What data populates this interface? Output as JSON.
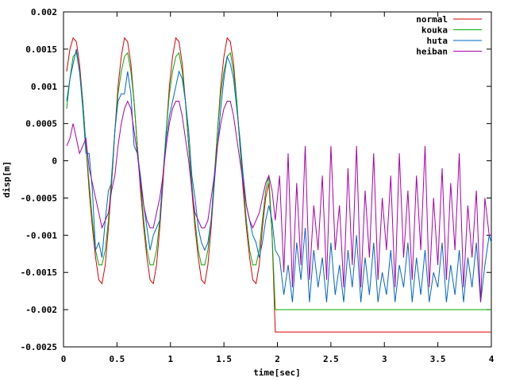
{
  "chart_data": {
    "type": "line",
    "xlabel": "time[sec]",
    "ylabel": "disp[m]",
    "xlim": [
      0,
      4
    ],
    "ylim": [
      -0.0025,
      0.002
    ],
    "x_ticks": [
      0,
      0.5,
      1,
      1.5,
      2,
      2.5,
      3,
      3.5,
      4
    ],
    "x_tick_labels": [
      "0",
      "0.5",
      "1",
      "1.5",
      "2",
      "2.5",
      "3",
      "3.5",
      "4"
    ],
    "y_ticks": [
      0.002,
      0.0015,
      0.001,
      0.0005,
      0,
      -0.0005,
      -0.001,
      -0.0015,
      -0.002,
      -0.0025
    ],
    "y_tick_labels": [
      "0.002",
      "0.0015",
      "0.001",
      "0.0005",
      "0",
      "-0.0005",
      "-0.001",
      "-0.0015",
      "-0.002",
      "-0.0025"
    ],
    "grid": false,
    "legend_position": "top-right",
    "series": [
      {
        "name": "normal",
        "color": "#dd0000",
        "x": [
          0.03,
          0.06,
          0.09,
          0.12,
          0.15,
          0.18,
          0.21,
          0.24,
          0.27,
          0.3,
          0.33,
          0.36,
          0.39,
          0.42,
          0.45,
          0.48,
          0.51,
          0.54,
          0.57,
          0.6,
          0.63,
          0.66,
          0.69,
          0.72,
          0.75,
          0.78,
          0.81,
          0.84,
          0.87,
          0.9,
          0.93,
          0.96,
          0.99,
          1.02,
          1.05,
          1.08,
          1.11,
          1.14,
          1.17,
          1.2,
          1.23,
          1.26,
          1.29,
          1.32,
          1.35,
          1.38,
          1.41,
          1.44,
          1.47,
          1.5,
          1.53,
          1.56,
          1.59,
          1.62,
          1.65,
          1.68,
          1.71,
          1.74,
          1.77,
          1.8,
          1.83,
          1.86,
          1.89,
          1.92,
          1.95,
          1.98,
          1.99,
          2.0,
          2.5,
          3.0,
          3.5,
          4.0
        ],
        "y": [
          0.0012,
          0.0015,
          0.00165,
          0.0016,
          0.0013,
          0.0008,
          0.0002,
          -0.0004,
          -0.0009,
          -0.0013,
          -0.0016,
          -0.00165,
          -0.0014,
          -0.0009,
          -0.0003,
          0.0004,
          0.001,
          0.0014,
          0.00165,
          0.0016,
          0.0013,
          0.0008,
          0.0002,
          -0.0004,
          -0.0009,
          -0.0013,
          -0.0016,
          -0.00165,
          -0.0014,
          -0.0009,
          -0.0003,
          0.0004,
          0.001,
          0.0014,
          0.00165,
          0.0016,
          0.0013,
          0.0008,
          0.0002,
          -0.0004,
          -0.0009,
          -0.0013,
          -0.0016,
          -0.00165,
          -0.0014,
          -0.0009,
          -0.0003,
          0.0004,
          0.001,
          0.0014,
          0.00165,
          0.0016,
          0.0013,
          0.0008,
          0.0002,
          -0.0004,
          -0.0009,
          -0.0013,
          -0.0016,
          -0.00165,
          -0.0014,
          -0.0009,
          -0.0005,
          -0.0003,
          -0.001,
          -0.0023,
          -0.0023,
          -0.0023,
          -0.0023,
          -0.0023,
          -0.0023,
          -0.0023
        ]
      },
      {
        "name": "kouka",
        "color": "#00aa00",
        "x": [
          0.03,
          0.06,
          0.09,
          0.12,
          0.15,
          0.18,
          0.21,
          0.24,
          0.27,
          0.3,
          0.33,
          0.36,
          0.39,
          0.42,
          0.45,
          0.48,
          0.51,
          0.54,
          0.57,
          0.6,
          0.63,
          0.66,
          0.69,
          0.72,
          0.75,
          0.78,
          0.81,
          0.84,
          0.87,
          0.9,
          0.93,
          0.96,
          0.99,
          1.02,
          1.05,
          1.08,
          1.11,
          1.14,
          1.17,
          1.2,
          1.23,
          1.26,
          1.29,
          1.32,
          1.35,
          1.38,
          1.41,
          1.44,
          1.47,
          1.5,
          1.53,
          1.56,
          1.59,
          1.62,
          1.65,
          1.68,
          1.71,
          1.74,
          1.77,
          1.8,
          1.83,
          1.86,
          1.89,
          1.92,
          1.95,
          1.98,
          1.99,
          2.0,
          2.5,
          3.0,
          3.5,
          4.0
        ],
        "y": [
          0.0007,
          0.0011,
          0.0014,
          0.00145,
          0.0012,
          0.0008,
          0.0002,
          -0.0003,
          -0.0008,
          -0.0012,
          -0.0014,
          -0.0014,
          -0.0012,
          -0.0008,
          -0.0002,
          0.0004,
          0.0009,
          0.0012,
          0.0014,
          0.00145,
          0.0012,
          0.0008,
          0.0002,
          -0.0003,
          -0.0008,
          -0.0012,
          -0.0014,
          -0.0014,
          -0.0012,
          -0.0008,
          -0.0002,
          0.0004,
          0.0009,
          0.0012,
          0.0014,
          0.00145,
          0.0012,
          0.0008,
          0.0002,
          -0.0003,
          -0.0008,
          -0.0012,
          -0.0014,
          -0.0014,
          -0.0012,
          -0.0008,
          -0.0002,
          0.0004,
          0.0009,
          0.0012,
          0.0014,
          0.00145,
          0.0012,
          0.0008,
          0.0002,
          -0.0003,
          -0.0008,
          -0.0012,
          -0.0014,
          -0.0014,
          -0.0012,
          -0.0008,
          -0.0004,
          -0.0002,
          -0.001,
          -0.002,
          -0.002,
          -0.002,
          -0.002,
          -0.002,
          -0.002,
          -0.002
        ]
      },
      {
        "name": "huta",
        "color": "#0066cc",
        "x": [
          0.03,
          0.06,
          0.09,
          0.12,
          0.15,
          0.18,
          0.21,
          0.24,
          0.27,
          0.3,
          0.33,
          0.36,
          0.39,
          0.42,
          0.45,
          0.48,
          0.51,
          0.54,
          0.57,
          0.6,
          0.63,
          0.66,
          0.69,
          0.72,
          0.75,
          0.78,
          0.81,
          0.84,
          0.87,
          0.9,
          0.93,
          0.96,
          0.99,
          1.02,
          1.05,
          1.08,
          1.11,
          1.14,
          1.17,
          1.2,
          1.23,
          1.26,
          1.29,
          1.32,
          1.35,
          1.38,
          1.41,
          1.44,
          1.47,
          1.5,
          1.53,
          1.56,
          1.59,
          1.62,
          1.65,
          1.68,
          1.71,
          1.74,
          1.77,
          1.8,
          1.83,
          1.86,
          1.89,
          1.92,
          1.95,
          1.98,
          2.02,
          2.06,
          2.1,
          2.14,
          2.18,
          2.22,
          2.26,
          2.3,
          2.34,
          2.38,
          2.42,
          2.46,
          2.5,
          2.54,
          2.58,
          2.62,
          2.66,
          2.7,
          2.74,
          2.78,
          2.82,
          2.86,
          2.9,
          2.94,
          2.98,
          3.02,
          3.06,
          3.1,
          3.14,
          3.18,
          3.22,
          3.26,
          3.3,
          3.34,
          3.38,
          3.42,
          3.46,
          3.5,
          3.54,
          3.58,
          3.62,
          3.66,
          3.7,
          3.74,
          3.78,
          3.82,
          3.86,
          3.9,
          3.94,
          3.98,
          4.0
        ],
        "y": [
          0.0008,
          0.0011,
          0.0013,
          0.0015,
          0.0012,
          0.0007,
          0.0001,
          0.0001,
          -0.0004,
          -0.0012,
          -0.0011,
          -0.0013,
          -0.0008,
          -0.0004,
          -0.0003,
          0.0004,
          0.0008,
          0.0009,
          0.0009,
          0.0012,
          0.0009,
          0.0002,
          0.0001,
          -0.0002,
          -0.0006,
          -0.0009,
          -0.0012,
          -0.001,
          -0.0009,
          -0.0008,
          -0.0002,
          0.0003,
          0.0006,
          0.0008,
          0.001,
          0.0012,
          0.0011,
          0.0008,
          0.0004,
          -0.0002,
          -0.0005,
          -0.0009,
          -0.0011,
          -0.0012,
          -0.0011,
          -0.0008,
          -0.0003,
          0.0002,
          0.0007,
          0.0011,
          0.0014,
          0.0013,
          0.0011,
          0.0007,
          0.0003,
          -0.0002,
          -0.0006,
          -0.0008,
          -0.001,
          -0.0011,
          -0.0013,
          -0.0011,
          -0.0008,
          -0.0006,
          -0.0008,
          -0.0012,
          -0.0013,
          -0.0018,
          -0.0014,
          -0.0019,
          -0.0011,
          -0.0016,
          -0.0009,
          -0.0019,
          -0.0012,
          -0.0017,
          -0.0013,
          -0.0019,
          -0.0011,
          -0.0018,
          -0.0014,
          -0.0019,
          -0.0012,
          -0.0017,
          -0.001,
          -0.0019,
          -0.0013,
          -0.0018,
          -0.0011,
          -0.0019,
          -0.0015,
          -0.0018,
          -0.0012,
          -0.0019,
          -0.0014,
          -0.0017,
          -0.0011,
          -0.0019,
          -0.0013,
          -0.0018,
          -0.0012,
          -0.0019,
          -0.0015,
          -0.0017,
          -0.0011,
          -0.0019,
          -0.0014,
          -0.0018,
          -0.0012,
          -0.0019,
          -0.0013,
          -0.0017,
          -0.0011,
          -0.0019,
          -0.0014,
          -0.001,
          -0.0011
        ]
      },
      {
        "name": "heiban",
        "color": "#aa00aa",
        "x": [
          0.03,
          0.06,
          0.09,
          0.12,
          0.15,
          0.18,
          0.21,
          0.24,
          0.27,
          0.3,
          0.33,
          0.36,
          0.39,
          0.42,
          0.45,
          0.48,
          0.51,
          0.54,
          0.57,
          0.6,
          0.63,
          0.66,
          0.69,
          0.72,
          0.75,
          0.78,
          0.81,
          0.84,
          0.87,
          0.9,
          0.93,
          0.96,
          0.99,
          1.02,
          1.05,
          1.08,
          1.11,
          1.14,
          1.17,
          1.2,
          1.23,
          1.26,
          1.29,
          1.32,
          1.35,
          1.38,
          1.41,
          1.44,
          1.47,
          1.5,
          1.53,
          1.56,
          1.59,
          1.62,
          1.65,
          1.68,
          1.71,
          1.74,
          1.77,
          1.8,
          1.83,
          1.86,
          1.89,
          1.92,
          1.95,
          1.98,
          2.02,
          2.06,
          2.1,
          2.14,
          2.18,
          2.22,
          2.26,
          2.3,
          2.34,
          2.38,
          2.42,
          2.46,
          2.5,
          2.54,
          2.58,
          2.62,
          2.66,
          2.7,
          2.74,
          2.78,
          2.82,
          2.86,
          2.9,
          2.94,
          2.98,
          3.02,
          3.06,
          3.1,
          3.14,
          3.18,
          3.22,
          3.26,
          3.3,
          3.34,
          3.38,
          3.42,
          3.46,
          3.5,
          3.54,
          3.58,
          3.62,
          3.66,
          3.7,
          3.74,
          3.78,
          3.82,
          3.86,
          3.9,
          3.94,
          3.98,
          4.0
        ],
        "y": [
          0.0002,
          0.0003,
          0.0005,
          0.0003,
          0.0001,
          0.0002,
          0.0003,
          -0.0001,
          -0.0003,
          -0.0005,
          -0.0007,
          -0.0009,
          -0.0008,
          -0.0007,
          -0.0004,
          -0.0002,
          0.0002,
          0.0005,
          0.0007,
          0.0008,
          0.0007,
          0.0004,
          0.0001,
          -0.0003,
          -0.0006,
          -0.0008,
          -0.0009,
          -0.0009,
          -0.0007,
          -0.0005,
          -0.0002,
          0.0002,
          0.0005,
          0.0007,
          0.0008,
          0.0008,
          0.0006,
          0.0003,
          0.0,
          -0.0004,
          -0.0007,
          -0.0008,
          -0.0009,
          -0.0009,
          -0.0008,
          -0.0005,
          -0.0002,
          0.0002,
          0.0005,
          0.0007,
          0.0008,
          0.0008,
          0.0006,
          0.0003,
          0.0,
          -0.0003,
          -0.0006,
          -0.0008,
          -0.0009,
          -0.0008,
          -0.0007,
          -0.0005,
          -0.0003,
          -0.0002,
          -0.0004,
          -0.0008,
          -0.0002,
          -0.0015,
          0.0001,
          -0.0017,
          -0.0003,
          -0.0014,
          0.0002,
          -0.0016,
          -0.0006,
          -0.0012,
          -0.0002,
          -0.0016,
          0.0002,
          -0.0012,
          -0.0006,
          -0.0017,
          -0.0001,
          -0.0014,
          0.0002,
          -0.0017,
          -0.0004,
          -0.0013,
          0.0001,
          -0.0016,
          -0.0005,
          -0.0012,
          -0.0002,
          -0.0017,
          0.0001,
          -0.0013,
          -0.0004,
          -0.0016,
          -0.0002,
          -0.0012,
          0.0002,
          -0.0017,
          -0.0005,
          -0.0014,
          -0.0001,
          -0.0016,
          -0.0003,
          -0.0012,
          0.0001,
          -0.0017,
          -0.0006,
          -0.0013,
          -0.0004,
          -0.0019,
          -0.0005,
          -0.001,
          -0.001
        ]
      }
    ]
  }
}
